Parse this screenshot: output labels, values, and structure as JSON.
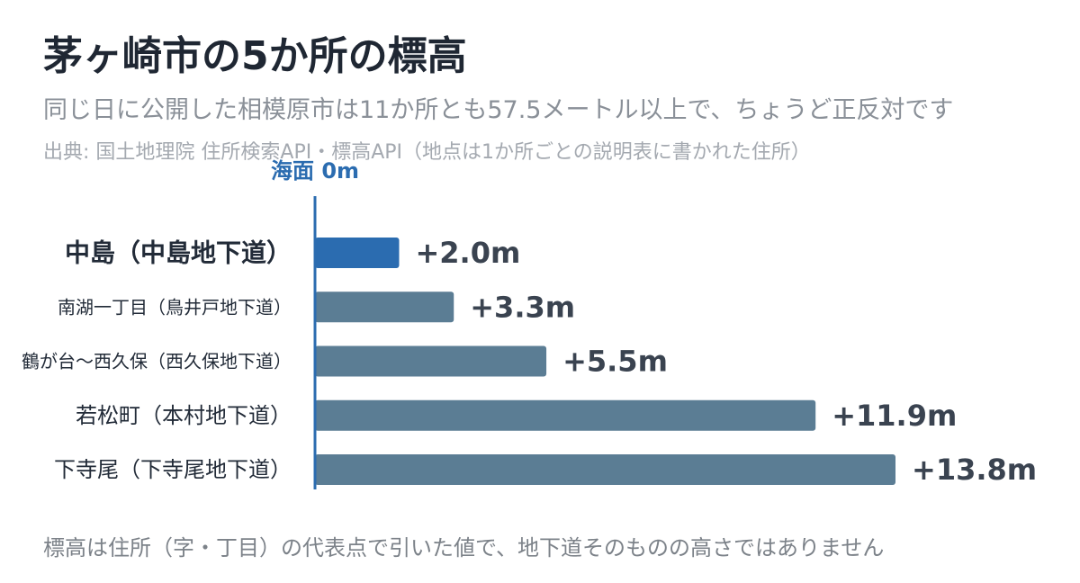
{
  "header": {
    "title": "茅ヶ崎市の5か所の標高",
    "subtitle": "同じ日に公開した相模原市は11か所とも57.5メートル以上で、ちょうど正反対です",
    "source": "出典: 国土地理院 住所検索API・標高API（地点は1か所ごとの説明表に書かれた住所）"
  },
  "footer": {
    "note": "標高は住所（字・丁目）の代表点で引いた値で、地下道そのものの高さではありません"
  },
  "colors": {
    "highlight": "#2b6cb0",
    "bar": "#5b7d94",
    "axis": "#2b6cb0",
    "title": "#1f2733",
    "value_label": "#3a4350"
  },
  "chart_data": {
    "type": "bar",
    "orientation": "horizontal",
    "reference_line_label": "海面 0m",
    "categories": [
      "中島（中島地下道）",
      "南湖一丁目（鳥井戸地下道）",
      "鶴が台〜西久保（西久保地下道）",
      "若松町（本村地下道）",
      "下寺尾（下寺尾地下道）"
    ],
    "values": [
      2.0,
      3.3,
      5.5,
      11.9,
      13.8
    ],
    "value_labels": [
      "+2.0m",
      "+3.3m",
      "+5.5m",
      "+11.9m",
      "+13.8m"
    ],
    "highlighted_index": 0,
    "xlim": [
      0,
      13.8
    ],
    "grid": false
  }
}
